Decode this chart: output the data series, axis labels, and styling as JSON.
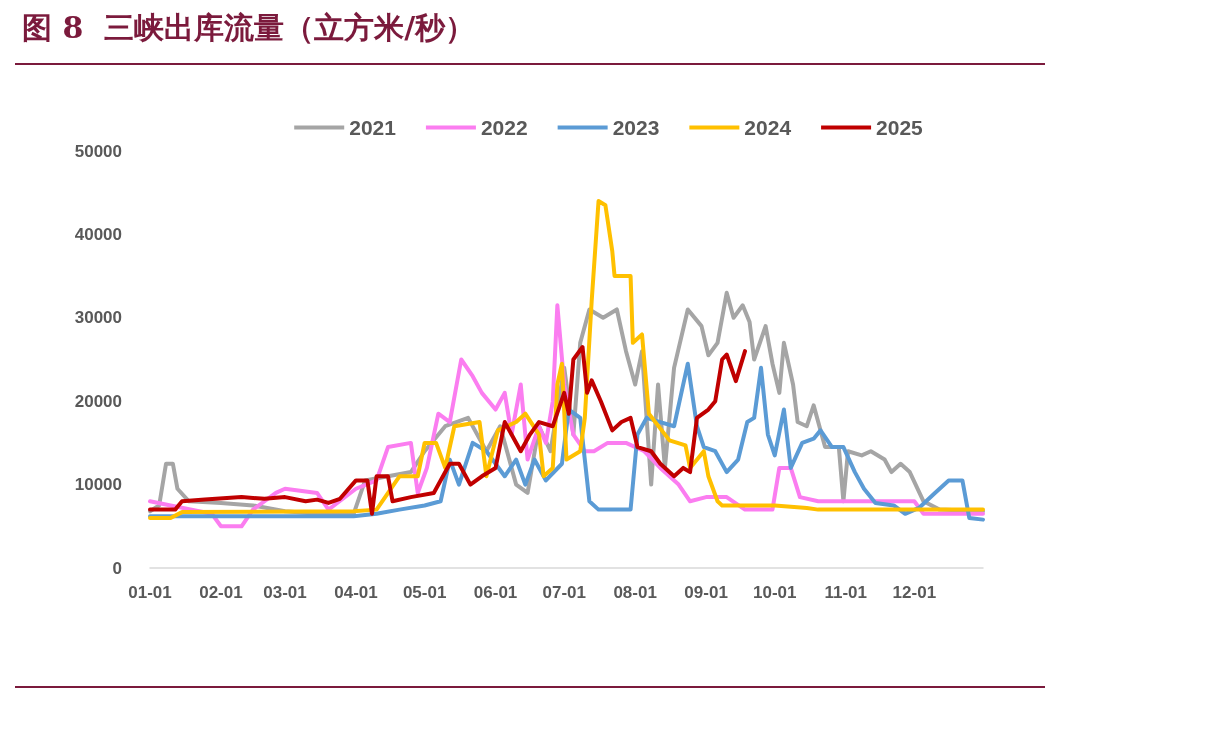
{
  "chart_data": {
    "type": "line",
    "title": "图 8  三峡出库流量（立方米/秒）",
    "xlim": [
      "--01-01",
      "--12-31"
    ],
    "xticks": [
      {
        "value": "--01-01",
        "label": "01-01"
      },
      {
        "value": "--02-01",
        "label": "02-01"
      },
      {
        "value": "--03-01",
        "label": "03-01"
      },
      {
        "value": "--04-01",
        "label": "04-01"
      },
      {
        "value": "--05-01",
        "label": "05-01"
      },
      {
        "value": "--06-01",
        "label": "06-01"
      },
      {
        "value": "--07-01",
        "label": "07-01"
      },
      {
        "value": "--08-01",
        "label": "08-01"
      },
      {
        "value": "--09-01",
        "label": "09-01"
      },
      {
        "value": "--10-01",
        "label": "10-01"
      },
      {
        "value": "--11-01",
        "label": "11-01"
      },
      {
        "value": "--12-01",
        "label": "12-01"
      }
    ],
    "ylim": [
      0,
      50000
    ],
    "yticks": [
      0,
      10000,
      20000,
      30000,
      40000,
      50000
    ],
    "grid": false,
    "legend": "top",
    "marker": "none",
    "line_style": "solid",
    "series": [
      {
        "name": "2021",
        "color": "#a5a5a5",
        "x": [
          "--01-01",
          "--01-05",
          "--01-08",
          "--01-11",
          "--01-13",
          "--01-18",
          "--02-01",
          "--02-15",
          "--03-01",
          "--03-15",
          "--03-31",
          "--04-05",
          "--04-15",
          "--04-25",
          "--05-01",
          "--05-10",
          "--05-20",
          "--05-28",
          "--06-03",
          "--06-10",
          "--06-15",
          "--06-20",
          "--06-25",
          "--07-01",
          "--07-05",
          "--07-08",
          "--07-12",
          "--07-18",
          "--07-24",
          "--07-28",
          "--08-01",
          "--08-04",
          "--08-08",
          "--08-11",
          "--08-14",
          "--08-18",
          "--08-24",
          "--08-30",
          "--09-02",
          "--09-06",
          "--09-10",
          "--09-13",
          "--09-17",
          "--09-20",
          "--09-22",
          "--09-27",
          "--09-30",
          "--10-03",
          "--10-05",
          "--10-09",
          "--10-11",
          "--10-15",
          "--10-18",
          "--10-23",
          "--10-29",
          "--10-31",
          "--11-02",
          "--11-08",
          "--11-12",
          "--11-18",
          "--11-21",
          "--11-25",
          "--11-29",
          "--12-05",
          "--12-12",
          "--12-31"
        ],
        "values": [
          6800,
          7500,
          12500,
          12500,
          9500,
          8000,
          7800,
          7500,
          6800,
          6500,
          6500,
          10500,
          11000,
          11500,
          14000,
          17000,
          18000,
          14000,
          17000,
          10000,
          9000,
          17000,
          14000,
          24000,
          16000,
          27000,
          31000,
          30000,
          31000,
          26000,
          22000,
          26000,
          10000,
          22000,
          12000,
          24000,
          31000,
          29000,
          25500,
          27000,
          33000,
          30000,
          31500,
          29500,
          25000,
          29000,
          24500,
          21000,
          27000,
          22000,
          17500,
          17000,
          19500,
          14500,
          14500,
          8000,
          14000,
          13500,
          14000,
          13000,
          11500,
          12500,
          11500,
          8000,
          7000,
          6800
        ]
      },
      {
        "name": "2022",
        "color": "#fb7df0",
        "x": [
          "--01-01",
          "--01-10",
          "--01-28",
          "--02-01",
          "--02-10",
          "--02-15",
          "--02-25",
          "--03-01",
          "--03-15",
          "--03-20",
          "--04-01",
          "--04-10",
          "--04-15",
          "--04-25",
          "--04-28",
          "--05-02",
          "--05-07",
          "--05-12",
          "--05-17",
          "--05-22",
          "--05-26",
          "--06-01",
          "--06-05",
          "--06-08",
          "--06-12",
          "--06-15",
          "--06-20",
          "--06-23",
          "--06-26",
          "--06-28",
          "--07-01",
          "--07-05",
          "--07-10",
          "--07-14",
          "--07-20",
          "--07-28",
          "--08-05",
          "--08-12",
          "--08-20",
          "--08-25",
          "--09-01",
          "--09-10",
          "--09-18",
          "--09-30",
          "--10-03",
          "--10-08",
          "--10-12",
          "--10-20",
          "--11-01",
          "--12-01",
          "--12-05",
          "--12-31"
        ],
        "values": [
          8000,
          7500,
          6500,
          5000,
          5000,
          7000,
          9000,
          9500,
          9000,
          7000,
          9500,
          10500,
          14500,
          15000,
          9000,
          12000,
          18500,
          17500,
          25000,
          23000,
          21000,
          19000,
          21000,
          16000,
          22000,
          13000,
          17000,
          15000,
          20000,
          31500,
          22000,
          16000,
          14000,
          14000,
          15000,
          15000,
          14000,
          12000,
          10000,
          8000,
          8500,
          8500,
          7000,
          7000,
          12000,
          12000,
          8500,
          8000,
          8000,
          8000,
          6500,
          6500
        ]
      },
      {
        "name": "2023",
        "color": "#5b9bd5",
        "x": [
          "--01-01",
          "--03-31",
          "--04-10",
          "--04-20",
          "--05-01",
          "--05-08",
          "--05-12",
          "--05-16",
          "--05-22",
          "--05-28",
          "--06-05",
          "--06-10",
          "--06-14",
          "--06-18",
          "--06-23",
          "--06-30",
          "--07-03",
          "--07-08",
          "--07-12",
          "--07-16",
          "--07-30",
          "--08-02",
          "--08-06",
          "--08-12",
          "--08-18",
          "--08-24",
          "--08-28",
          "--08-31",
          "--09-05",
          "--09-10",
          "--09-15",
          "--09-19",
          "--09-22",
          "--09-25",
          "--09-28",
          "--10-01",
          "--10-05",
          "--10-08",
          "--10-13",
          "--10-18",
          "--10-21",
          "--10-26",
          "--10-31",
          "--11-05",
          "--11-09",
          "--11-14",
          "--11-22",
          "--11-27",
          "--12-03",
          "--12-10",
          "--12-16",
          "--12-22",
          "--12-25",
          "--12-31"
        ],
        "values": [
          6200,
          6200,
          6500,
          7000,
          7500,
          8000,
          13000,
          10000,
          15000,
          14000,
          11000,
          13000,
          10000,
          13000,
          10500,
          12500,
          19000,
          18000,
          8000,
          7000,
          7000,
          16000,
          18000,
          17500,
          17000,
          24500,
          17000,
          14500,
          14000,
          11500,
          13000,
          17500,
          18000,
          24000,
          16000,
          13500,
          19000,
          12000,
          15000,
          15500,
          16500,
          14500,
          14500,
          11500,
          9500,
          7800,
          7500,
          6500,
          7200,
          9000,
          10500,
          10500,
          6000,
          5800
        ]
      },
      {
        "name": "2024",
        "color": "#ffc000",
        "x": [
          "--01-01",
          "--01-10",
          "--01-15",
          "--03-31",
          "--04-10",
          "--04-20",
          "--04-28",
          "--05-01",
          "--05-06",
          "--05-10",
          "--05-14",
          "--05-25",
          "--05-28",
          "--06-02",
          "--06-10",
          "--06-14",
          "--06-20",
          "--06-22",
          "--06-26",
          "--06-28",
          "--06-30",
          "--07-02",
          "--07-08",
          "--07-10",
          "--07-13",
          "--07-16",
          "--07-19",
          "--07-22",
          "--07-23",
          "--07-30",
          "--07-31",
          "--08-04",
          "--08-07",
          "--08-16",
          "--08-23",
          "--08-25",
          "--08-31",
          "--09-02",
          "--09-06",
          "--09-08",
          "--09-20",
          "--10-01",
          "--10-15",
          "--10-20",
          "--12-31"
        ],
        "values": [
          6000,
          6000,
          6700,
          6800,
          7000,
          11000,
          11000,
          15000,
          15000,
          12000,
          17000,
          17500,
          11000,
          16500,
          17500,
          18500,
          16000,
          11000,
          12000,
          22000,
          24500,
          13000,
          14000,
          18000,
          32000,
          44000,
          43500,
          38000,
          35000,
          35000,
          27000,
          28000,
          18500,
          15300,
          14700,
          12000,
          14000,
          11000,
          8000,
          7500,
          7500,
          7500,
          7200,
          7000,
          7000
        ]
      },
      {
        "name": "2025",
        "color": "#c00000",
        "x": [
          "--01-01",
          "--01-12",
          "--01-15",
          "--01-25",
          "--02-10",
          "--02-20",
          "--03-01",
          "--03-10",
          "--03-15",
          "--03-20",
          "--03-25",
          "--04-01",
          "--04-06",
          "--04-08",
          "--04-10",
          "--04-15",
          "--04-17",
          "--04-25",
          "--05-05",
          "--05-12",
          "--05-16",
          "--05-21",
          "--05-26",
          "--06-01",
          "--06-05",
          "--06-08",
          "--06-12",
          "--06-16",
          "--06-20",
          "--06-26",
          "--07-01",
          "--07-03",
          "--07-05",
          "--07-09",
          "--07-11",
          "--07-13",
          "--07-17",
          "--07-22",
          "--07-26",
          "--07-30",
          "--08-02",
          "--08-08",
          "--08-12",
          "--08-18",
          "--08-22",
          "--08-25",
          "--08-28",
          "--09-02",
          "--09-05",
          "--09-08",
          "--09-10",
          "--09-14",
          "--09-18"
        ],
        "values": [
          7000,
          7000,
          8000,
          8200,
          8500,
          8300,
          8500,
          8000,
          8200,
          7800,
          8300,
          10500,
          10500,
          6500,
          11000,
          11000,
          8000,
          8500,
          9000,
          12500,
          12500,
          10000,
          11000,
          12000,
          17500,
          16000,
          14000,
          16000,
          17500,
          17000,
          21000,
          18500,
          25000,
          26500,
          21000,
          22500,
          20000,
          16500,
          17500,
          18000,
          14500,
          14000,
          12500,
          11000,
          12000,
          11500,
          18000,
          19000,
          20000,
          25000,
          25600,
          22400,
          26000
        ]
      }
    ]
  }
}
